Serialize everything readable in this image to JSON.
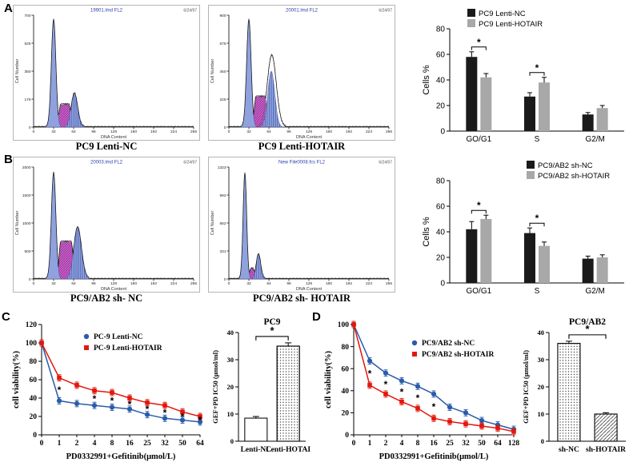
{
  "figure": {
    "panels": {
      "A": "A",
      "B": "B",
      "C": "C",
      "D": "D"
    }
  },
  "flow_plots": [
    {
      "id": "flowA1",
      "header": "19901.lmd FL2",
      "corner": "6/24/97",
      "caption": "PC9 Lenti-NC",
      "xlabel": "DNA Content",
      "ylabel": "Cell Number",
      "ymax": 700,
      "xticks": [
        0,
        32,
        64,
        96,
        128,
        160,
        192,
        224,
        256
      ],
      "g1": {
        "c": 0.125,
        "w": 0.014,
        "h": 0.96
      },
      "s": {
        "from": 0.145,
        "to": 0.245,
        "h": 0.2
      },
      "g2": {
        "c": 0.255,
        "w": 0.02,
        "h": 0.3
      }
    },
    {
      "id": "flowA2",
      "header": "20001.lmd FL2",
      "corner": "6/24/97",
      "caption": "PC9 Lenti-HOTAIR",
      "xlabel": "DNA Content",
      "ylabel": "Cell Number",
      "ymax": 900,
      "xticks": [
        0,
        32,
        64,
        96,
        128,
        160,
        192,
        224,
        256
      ],
      "g1": {
        "c": 0.125,
        "w": 0.014,
        "h": 0.96
      },
      "s": {
        "from": 0.145,
        "to": 0.25,
        "h": 0.27
      },
      "g2": {
        "c": 0.265,
        "w": 0.022,
        "h": 0.5
      },
      "extra": {
        "c": 0.268,
        "w": 0.028,
        "h": 0.64
      }
    },
    {
      "id": "flowB1",
      "header": "20003.lmd FL2",
      "corner": "6/24/97",
      "caption": "PC9/AB2 sh- NC",
      "xlabel": "DNA Content",
      "ylabel": "Cell Number",
      "ymax": 2000,
      "xticks": [
        0,
        32,
        64,
        96,
        128,
        160,
        192,
        224,
        256
      ],
      "g1": {
        "c": 0.125,
        "w": 0.014,
        "h": 0.95
      },
      "s": {
        "from": 0.145,
        "to": 0.26,
        "h": 0.33
      },
      "g2": {
        "c": 0.275,
        "w": 0.024,
        "h": 0.46
      }
    },
    {
      "id": "flowB2",
      "header": "New File0008.fcs FL2",
      "corner": "6/24/97",
      "caption": "PC9/AB2 sh- HOTAIR",
      "xlabel": "DNA Content",
      "ylabel": "Cell Number",
      "ymax": 1323,
      "xticks": [
        0,
        32,
        64,
        96,
        128,
        160,
        192,
        224,
        256
      ],
      "g1": {
        "c": 0.1,
        "w": 0.011,
        "h": 0.95
      },
      "s": {
        "from": 0.115,
        "to": 0.175,
        "h": 0.09
      },
      "g2": {
        "c": 0.185,
        "w": 0.014,
        "h": 0.22
      }
    }
  ],
  "chart_data": [
    {
      "id": "barA",
      "type": "bar",
      "ylabel": "Cells %",
      "ylim": [
        0,
        80
      ],
      "yticks": [
        0,
        20,
        40,
        60,
        80
      ],
      "categories": [
        "GO/G1",
        "S",
        "G2/M"
      ],
      "series": [
        {
          "name": "PC9 Lenti-NC",
          "color": "#1a1a1a",
          "values": [
            58,
            27,
            13
          ],
          "errors": [
            4,
            3,
            1.5
          ]
        },
        {
          "name": "PC9 Lenti-HOTAIR",
          "color": "#a8a8a8",
          "values": [
            42,
            38,
            18
          ],
          "errors": [
            3,
            4,
            2
          ]
        }
      ],
      "significance": [
        {
          "cat": 0,
          "label": "*"
        },
        {
          "cat": 1,
          "label": "*"
        }
      ],
      "legend_pos": "left",
      "grid": false
    },
    {
      "id": "barB",
      "type": "bar",
      "ylabel": "Cells %",
      "ylim": [
        0,
        80
      ],
      "yticks": [
        0,
        20,
        40,
        60,
        80
      ],
      "categories": [
        "GO/G1",
        "S",
        "G2/M"
      ],
      "series": [
        {
          "name": "PC9/AB2 sh-NC",
          "color": "#1a1a1a",
          "values": [
            42,
            39,
            19
          ],
          "errors": [
            6,
            4,
            2
          ]
        },
        {
          "name": "PC9/AB2 sh-HOTAIR",
          "color": "#a8a8a8",
          "values": [
            50,
            29,
            20
          ],
          "errors": [
            3,
            3,
            2
          ]
        }
      ],
      "significance": [
        {
          "cat": 0,
          "label": "*"
        },
        {
          "cat": 1,
          "label": "*"
        }
      ],
      "legend_pos": "right",
      "grid": false
    },
    {
      "id": "lineC",
      "type": "line",
      "xlabel": "PD0332991+Gefitinib(μmol/L)",
      "ylabel": "cell viability(%)",
      "x_labels": [
        "0",
        "1",
        "2",
        "4",
        "8",
        "16",
        "25",
        "32",
        "50",
        "64"
      ],
      "ylim": [
        0,
        120
      ],
      "yticks": [
        0,
        20,
        40,
        60,
        80,
        100,
        120
      ],
      "series": [
        {
          "name": "PC-9 Lenti-NC",
          "color": "#2a5caa",
          "marker": "circle",
          "values": [
            100,
            37,
            34,
            32,
            30,
            28,
            22,
            18,
            16,
            14
          ]
        },
        {
          "name": "PC-9 Lenti-HOTAIR",
          "color": "#e3170d",
          "marker": "square",
          "values": [
            100,
            62,
            54,
            48,
            46,
            40,
            35,
            32,
            25,
            20
          ]
        }
      ],
      "sig_indices": [
        1,
        3,
        4,
        5,
        6,
        7,
        8,
        9
      ],
      "sig_label": "*",
      "legend_pos": "right",
      "grid": false
    },
    {
      "id": "barC",
      "type": "simplebar",
      "title": "PC9",
      "ylabel": "GEF+PD IC50 (μmol/ml)",
      "ylim": [
        0,
        40
      ],
      "yticks": [
        0,
        10,
        20,
        30,
        40
      ],
      "categories": [
        "Lenti-NC",
        "Lenti-HOTAI"
      ],
      "values": [
        8.5,
        35
      ],
      "errors": [
        0.6,
        1.2
      ],
      "patterns": [
        "plain",
        "dots"
      ],
      "sig_label": "*",
      "grid": false
    },
    {
      "id": "lineD",
      "type": "line",
      "xlabel": "PD0332991+Gefitinib(μmol/L)",
      "ylabel": "cell viability(%)",
      "x_labels": [
        "0",
        "1",
        "2",
        "4",
        "8",
        "16",
        "25",
        "32",
        "50",
        "64",
        "128"
      ],
      "ylim": [
        0,
        100
      ],
      "yticks": [
        0,
        20,
        40,
        60,
        80,
        100
      ],
      "series": [
        {
          "name": "PC9/AB2 sh-NC",
          "color": "#2a5caa",
          "marker": "circle",
          "values": [
            100,
            67,
            56,
            49,
            44,
            37,
            25,
            20,
            13,
            9,
            5
          ]
        },
        {
          "name": "PC9/AB2 sh-HOTAIR",
          "color": "#e3170d",
          "marker": "square",
          "values": [
            100,
            45,
            37,
            30,
            24,
            15,
            12,
            10,
            8,
            6,
            3
          ]
        }
      ],
      "sig_indices": [
        1,
        2,
        3,
        4,
        5
      ],
      "sig_label": "*",
      "legend_pos": "right",
      "grid": false
    },
    {
      "id": "barD",
      "type": "simplebar",
      "title": "PC9/AB2",
      "ylabel": "GEF+PD IC50 (μmol/ml)",
      "ylim": [
        0,
        40
      ],
      "yticks": [
        0,
        10,
        20,
        30,
        40
      ],
      "categories": [
        "sh-NC",
        "sh-HOTAIR"
      ],
      "values": [
        36,
        10
      ],
      "errors": [
        0.8,
        0.5
      ],
      "patterns": [
        "dots",
        "hatch"
      ],
      "sig_label": "*",
      "grid": false
    }
  ]
}
